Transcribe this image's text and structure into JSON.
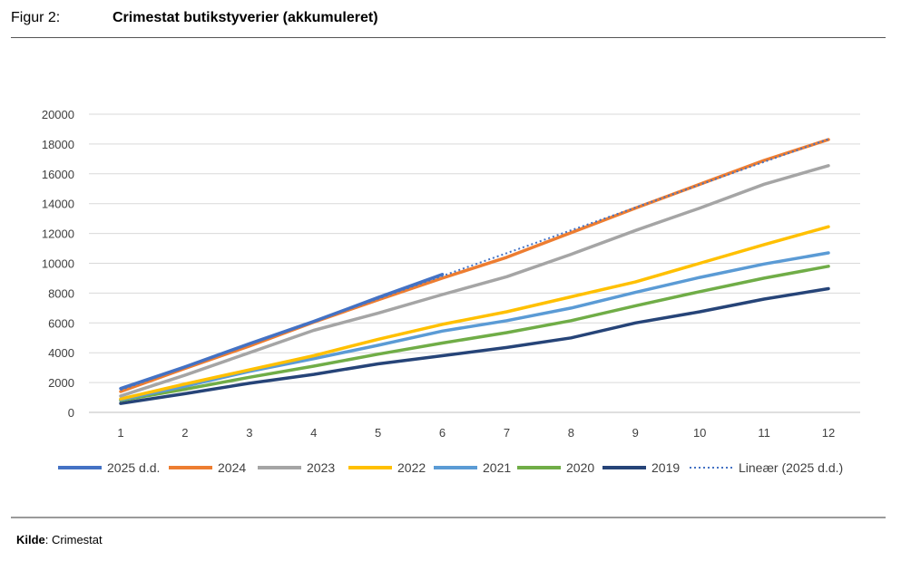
{
  "header": {
    "figure_label": "Figur 2:",
    "title": "Crimestat butikstyverier (akkumuleret)"
  },
  "footer": {
    "source_label": "Kilde",
    "source_text": ": Crimestat"
  },
  "chart_data": {
    "type": "line",
    "title": "Crimestat butikstyverier (akkumuleret)",
    "x": [
      1,
      2,
      3,
      4,
      5,
      6,
      7,
      8,
      9,
      10,
      11,
      12
    ],
    "ylim": [
      0,
      20000
    ],
    "yticks": [
      0,
      2000,
      4000,
      6000,
      8000,
      10000,
      12000,
      14000,
      16000,
      18000,
      20000
    ],
    "grid": true,
    "legend_position": "bottom",
    "series": [
      {
        "name": "2025 d.d.",
        "color": "#4472C4",
        "style": "solid",
        "values": [
          1600,
          3050,
          4600,
          6100,
          7700,
          9250,
          null,
          null,
          null,
          null,
          null,
          null
        ]
      },
      {
        "name": "2024",
        "color": "#ED7D31",
        "style": "solid",
        "values": [
          1400,
          2950,
          4450,
          6050,
          7550,
          9000,
          10400,
          12050,
          13700,
          15300,
          16900,
          18300
        ]
      },
      {
        "name": "2023",
        "color": "#A5A5A5",
        "style": "solid",
        "values": [
          1100,
          2500,
          4000,
          5500,
          6650,
          7900,
          9100,
          10600,
          12200,
          13700,
          15300,
          16550
        ]
      },
      {
        "name": "2022",
        "color": "#FFC000",
        "style": "solid",
        "values": [
          900,
          1900,
          2850,
          3800,
          4900,
          5900,
          6750,
          7750,
          8750,
          10000,
          11250,
          12450
        ]
      },
      {
        "name": "2021",
        "color": "#5B9BD5",
        "style": "solid",
        "values": [
          850,
          1750,
          2750,
          3600,
          4500,
          5450,
          6150,
          7000,
          8050,
          9050,
          9950,
          10700
        ]
      },
      {
        "name": "2020",
        "color": "#70AD47",
        "style": "solid",
        "values": [
          800,
          1550,
          2350,
          3100,
          3900,
          4650,
          5350,
          6150,
          7150,
          8100,
          9000,
          9800
        ]
      },
      {
        "name": "2019",
        "color": "#264478",
        "style": "solid",
        "values": [
          600,
          1250,
          1950,
          2550,
          3250,
          3800,
          4350,
          5000,
          6000,
          6750,
          7600,
          8300
        ]
      },
      {
        "name": "Lineær (2025 d.d.)",
        "color": "#4472C4",
        "style": "dotted",
        "values": [
          1500,
          3030,
          4560,
          6090,
          7620,
          9150,
          10680,
          12210,
          13740,
          15270,
          16800,
          18330
        ]
      }
    ]
  }
}
